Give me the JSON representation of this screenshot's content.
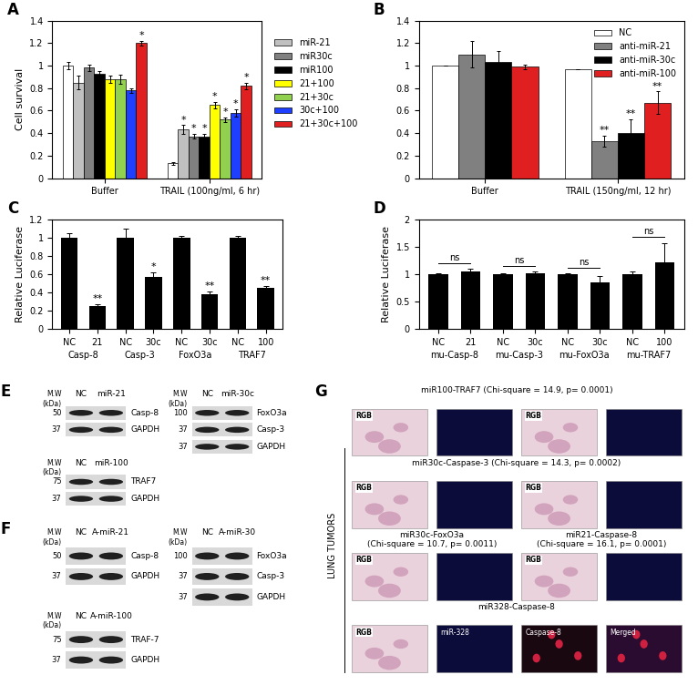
{
  "chart_data": [
    {
      "panel": "A",
      "type": "bar",
      "y_label": "Cell survival",
      "categories": [
        "Buffer",
        "TRAIL (100ng/ml, 6 hr)"
      ],
      "ylim": [
        0,
        1.4
      ],
      "yticks": [
        0,
        0.2,
        0.4,
        0.6,
        0.8,
        1,
        1.2,
        1.4
      ],
      "legend": "right",
      "series": [
        {
          "name": null,
          "color": "#ffffff",
          "values": [
            1,
            0.13
          ],
          "errors": [
            0.03,
            0.01
          ],
          "marks": [
            null,
            null
          ]
        },
        {
          "name": "miR-21",
          "color": "#c0c0c0",
          "values": [
            0.85,
            0.43
          ],
          "errors": [
            0.06,
            0.04
          ],
          "marks": [
            null,
            "*"
          ]
        },
        {
          "name": "miR30c",
          "color": "#808080",
          "values": [
            0.98,
            0.37
          ],
          "errors": [
            0.03,
            0.02
          ],
          "marks": [
            null,
            "*"
          ]
        },
        {
          "name": "miR100",
          "color": "#000000",
          "values": [
            0.93,
            0.37
          ],
          "errors": [
            0.02,
            0.02
          ],
          "marks": [
            null,
            "*"
          ]
        },
        {
          "name": "21+100",
          "color": "#ffff00",
          "values": [
            0.88,
            0.65
          ],
          "errors": [
            0.03,
            0.03
          ],
          "marks": [
            null,
            "*"
          ]
        },
        {
          "name": "21+30c",
          "color": "#92d050",
          "values": [
            0.88,
            0.52
          ],
          "errors": [
            0.04,
            0.02
          ],
          "marks": [
            null,
            "*"
          ]
        },
        {
          "name": "30c+100",
          "color": "#1f3fff",
          "values": [
            0.78,
            0.58
          ],
          "errors": [
            0.02,
            0.03
          ],
          "marks": [
            null,
            "*"
          ]
        },
        {
          "name": "21+30c+100",
          "color": "#e02020",
          "values": [
            1.2,
            0.82
          ],
          "errors": [
            0.02,
            0.03
          ],
          "marks": [
            "*",
            "*"
          ]
        }
      ]
    },
    {
      "panel": "B",
      "type": "bar",
      "categories": [
        "Buffer",
        "TRAIL (150ng/ml, 12 hr)"
      ],
      "ylim": [
        0,
        1.4
      ],
      "yticks": [
        0,
        0.2,
        0.4,
        0.6,
        0.8,
        1,
        1.2,
        1.4
      ],
      "legend": "upper right",
      "series": [
        {
          "name": "NC",
          "color": "#ffffff",
          "values": [
            1,
            0.97
          ],
          "errors": [
            0,
            0
          ],
          "marks": [
            null,
            null
          ]
        },
        {
          "name": "anti-miR-21",
          "color": "#808080",
          "values": [
            1.1,
            0.33
          ],
          "errors": [
            0.12,
            0.05
          ],
          "marks": [
            null,
            "**"
          ]
        },
        {
          "name": "anti-miR-30c",
          "color": "#000000",
          "values": [
            1.03,
            0.4
          ],
          "errors": [
            0.1,
            0.12
          ],
          "marks": [
            null,
            "**"
          ]
        },
        {
          "name": "anti-miR-100",
          "color": "#e02020",
          "values": [
            0.99,
            0.67
          ],
          "errors": [
            0.02,
            0.1
          ],
          "marks": [
            null,
            "**"
          ]
        }
      ]
    },
    {
      "panel": "C",
      "type": "bar",
      "y_label": "Relative Luciferase",
      "color": "#000000",
      "categories": [
        "NC",
        "21",
        "NC",
        "30c",
        "NC",
        "30c",
        "NC",
        "100"
      ],
      "groups": [
        "Casp-8",
        "Casp-3",
        "FoxO3a",
        "TRAF7"
      ],
      "values": [
        1,
        0.25,
        1,
        0.57,
        1,
        0.38,
        1,
        0.45
      ],
      "errors": [
        0.05,
        0.02,
        0.1,
        0.05,
        0.02,
        0.03,
        0.02,
        0.02
      ],
      "marks": [
        null,
        "**",
        null,
        "*",
        null,
        "**",
        null,
        "**"
      ],
      "ylim": [
        0,
        1.2
      ],
      "yticks": [
        0,
        0.2,
        0.4,
        0.6,
        0.8,
        1,
        1.2
      ]
    },
    {
      "panel": "D",
      "type": "bar",
      "y_label": "Relative Luciferase",
      "color": "#000000",
      "categories": [
        "NC",
        "21",
        "NC",
        "30c",
        "NC",
        "30c",
        "NC",
        "100"
      ],
      "groups": [
        "mu-Casp-8",
        "mu-Casp-3",
        "mu-FoxO3a",
        "mu-TRAF7"
      ],
      "values": [
        1,
        1.05,
        1,
        1.02,
        1,
        0.85,
        1,
        1.22
      ],
      "errors": [
        0.02,
        0.05,
        0.02,
        0.02,
        0.01,
        0.12,
        0.04,
        0.35
      ],
      "pair_labels": [
        "ns",
        "ns",
        "ns",
        "ns"
      ],
      "ylim": [
        0,
        2
      ],
      "yticks": [
        0,
        0.5,
        1,
        1.5,
        2
      ]
    }
  ],
  "blots": [
    {
      "panel": "E",
      "mw_header": "M.W\n(kDa)",
      "blots": [
        {
          "lanes": [
            "NC",
            "miR-21"
          ],
          "rows": [
            {
              "label": "Casp-8",
              "mw": 50
            },
            {
              "label": "GAPDH",
              "mw": 37
            }
          ]
        },
        {
          "lanes": [
            "NC",
            "miR-30c"
          ],
          "rows": [
            {
              "label": "FoxO3a",
              "mw": 100
            },
            {
              "label": "Casp-3",
              "mw": 37
            },
            {
              "label": "GAPDH",
              "mw": 37
            }
          ]
        },
        {
          "lanes": [
            "NC",
            "miR-100"
          ],
          "rows": [
            {
              "label": "TRAF7",
              "mw": 75
            },
            {
              "label": "GAPDH",
              "mw": 37
            }
          ]
        }
      ]
    },
    {
      "panel": "F",
      "mw_header": "M.W\n(kDa)",
      "blots": [
        {
          "lanes": [
            "NC",
            "A-miR-21"
          ],
          "rows": [
            {
              "label": "Casp-8",
              "mw": 50
            },
            {
              "label": "GAPDH",
              "mw": 37
            }
          ]
        },
        {
          "lanes": [
            "NC",
            "A-miR-30"
          ],
          "rows": [
            {
              "label": "FoxO3a",
              "mw": 100
            },
            {
              "label": "Casp-3",
              "mw": 37
            },
            {
              "label": "GAPDH",
              "mw": 37
            }
          ]
        },
        {
          "lanes": [
            "NC",
            "A-miR-100"
          ],
          "rows": [
            {
              "label": "TRAF-7",
              "mw": 75
            },
            {
              "label": "GAPDH",
              "mw": 37
            }
          ]
        }
      ]
    }
  ],
  "tissue": {
    "panel": "G",
    "side_label": "LUNG TUMORS",
    "rows": [
      [
        {
          "title": "miR100-TRAF7 (Chi-square = 14.9, p= 0.0001)",
          "tiles": [
            {
              "label": "RGB",
              "kind": "rgb"
            },
            {
              "label": null,
              "kind": "blue"
            },
            {
              "label": "RGB",
              "kind": "rgb"
            },
            {
              "label": null,
              "kind": "blue"
            }
          ]
        }
      ],
      [
        {
          "title": "miR30c-Caspase-3 (Chi-square = 14.3, p= 0.0002)",
          "tiles": [
            {
              "label": "RGB",
              "kind": "rgb"
            },
            {
              "label": null,
              "kind": "blue"
            },
            {
              "label": "RGB",
              "kind": "rgb"
            },
            {
              "label": null,
              "kind": "blue"
            }
          ]
        }
      ],
      [
        {
          "title": "miR30c-FoxO3a\n(Chi-square = 10.7, p= 0.0011)",
          "tiles": [
            {
              "label": "RGB",
              "kind": "rgb"
            },
            {
              "label": null,
              "kind": "blue"
            }
          ]
        },
        {
          "title": "miR21-Caspase-8\n(Chi-square = 16.1, p= 0.0001)",
          "tiles": [
            {
              "label": "RGB",
              "kind": "rgb"
            },
            {
              "label": null,
              "kind": "blue"
            }
          ]
        }
      ],
      [
        {
          "title": "miR328-Caspase-8",
          "tiles": [
            {
              "label": "RGB",
              "kind": "rgb"
            },
            {
              "label": "miR-328",
              "kind": "blue"
            },
            {
              "label": "Caspase-8",
              "kind": "red"
            },
            {
              "label": "Merged",
              "kind": "merged"
            }
          ]
        }
      ]
    ]
  }
}
